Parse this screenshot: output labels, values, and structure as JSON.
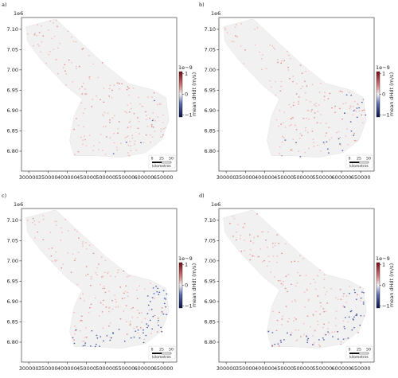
{
  "chart_data": [
    {
      "type": "map",
      "panel_label": "a)",
      "y_offset_label": "1e6",
      "xlim": [
        281000,
        685000
      ],
      "ylim": [
        6.751,
        7.129
      ],
      "xticks": [
        300000,
        350000,
        400000,
        450000,
        500000,
        550000,
        600000,
        650000
      ],
      "yticks": [
        {
          "value": 6.8,
          "label": "6.80"
        },
        6.85,
        {
          "value": 6.9,
          "label": "6.90"
        },
        6.95,
        {
          "value": 7.0,
          "label": "7.00"
        },
        7.05,
        {
          "value": 7.1,
          "label": "7.10"
        }
      ],
      "colorbar": {
        "label": "mean dHdt (m/s)",
        "offset_label": "1e−9",
        "clim": [
          -1.1,
          1.1
        ],
        "ticks": [
          {
            "value": -1,
            "label": "−1"
          },
          0,
          1
        ]
      },
      "scalebar": {
        "ticks": [
          "0",
          "25",
          "50"
        ],
        "unit": "kilometres"
      }
    },
    {
      "type": "map",
      "panel_label": "b)",
      "y_offset_label": "1e6",
      "xlim": [
        281000,
        685000
      ],
      "ylim": [
        6.751,
        7.129
      ],
      "xticks": [
        300000,
        350000,
        400000,
        450000,
        500000,
        550000,
        600000,
        650000
      ],
      "yticks": [
        {
          "value": 6.8,
          "label": "6.80"
        },
        6.85,
        {
          "value": 6.9,
          "label": "6.90"
        },
        6.95,
        {
          "value": 7.0,
          "label": "7.00"
        },
        7.05,
        {
          "value": 7.1,
          "label": "7.10"
        }
      ],
      "colorbar": {
        "label": "mean dHdt (m/s)",
        "offset_label": "1e−9",
        "clim": [
          -1.1,
          1.1
        ],
        "ticks": [
          {
            "value": -1,
            "label": "−1"
          },
          0,
          1
        ]
      },
      "scalebar": {
        "ticks": [
          "0",
          "25",
          "50"
        ],
        "unit": "kilometres"
      }
    },
    {
      "type": "map",
      "panel_label": "c)",
      "y_offset_label": "1e6",
      "xlim": [
        281000,
        685000
      ],
      "ylim": [
        6.751,
        7.129
      ],
      "xticks": [
        300000,
        350000,
        400000,
        450000,
        500000,
        550000,
        600000,
        650000
      ],
      "yticks": [
        {
          "value": 6.8,
          "label": "6.80"
        },
        6.85,
        {
          "value": 6.9,
          "label": "6.90"
        },
        6.95,
        {
          "value": 7.0,
          "label": "7.00"
        },
        7.05,
        {
          "value": 7.1,
          "label": "7.10"
        }
      ],
      "colorbar": {
        "label": "mean dHdt (m/s)",
        "offset_label": "1e−9",
        "clim": [
          -1.1,
          1.1
        ],
        "ticks": [
          {
            "value": -1,
            "label": "−1"
          },
          0,
          1
        ]
      },
      "scalebar": {
        "ticks": [
          "0",
          "25",
          "50"
        ],
        "unit": "kilometres"
      }
    },
    {
      "type": "map",
      "panel_label": "d)",
      "y_offset_label": "1e6",
      "xlim": [
        281000,
        685000
      ],
      "ylim": [
        6.751,
        7.129
      ],
      "xticks": [
        300000,
        350000,
        400000,
        450000,
        500000,
        550000,
        600000,
        650000
      ],
      "yticks": [
        {
          "value": 6.8,
          "label": "6.80"
        },
        6.85,
        {
          "value": 6.9,
          "label": "6.90"
        },
        6.95,
        {
          "value": 7.0,
          "label": "7.00"
        },
        7.05,
        {
          "value": 7.1,
          "label": "7.10"
        }
      ],
      "colorbar": {
        "label": "mean dHdt (m/s)",
        "offset_label": "1e−9",
        "clim": [
          -1.1,
          1.1
        ],
        "ticks": [
          {
            "value": -1,
            "label": "−1"
          },
          0,
          1
        ]
      },
      "scalebar": {
        "ticks": [
          "0",
          "25",
          "50"
        ],
        "unit": "kilometres"
      }
    }
  ]
}
